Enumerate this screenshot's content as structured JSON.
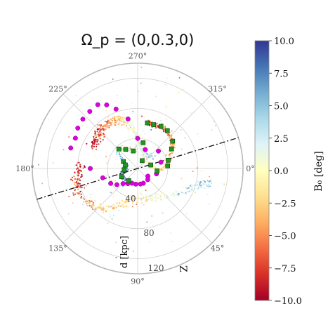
{
  "chart_data": {
    "type": "scatter",
    "projection": "polar",
    "title": "Ω_p = (0,0.3,0)",
    "angular_ticks": [
      "270°",
      "315°",
      "0°",
      "45°",
      "90°",
      "135°",
      "180°",
      "225°"
    ],
    "radial_ticks": [
      "40",
      "80",
      "120"
    ],
    "radial_label": "d [kpc]",
    "radial_extra_label": "Z",
    "rlim": [
      0,
      140
    ],
    "grid": true,
    "colorbar": {
      "label": "B₀ [deg]",
      "range": [
        -10.0,
        10.0
      ],
      "ticks": [
        "10.0",
        "7.5",
        "5.0",
        "2.5",
        "0.0",
        "−2.5",
        "−5.0",
        "−7.5",
        "−10.0"
      ],
      "colormap": "RdYlBu",
      "colors": [
        "#a50026",
        "#d73027",
        "#f46d43",
        "#fdae61",
        "#fee090",
        "#ffffbf",
        "#e0f3f8",
        "#abd9e9",
        "#74add1",
        "#4575b4",
        "#313695"
      ]
    },
    "magenta_track": [
      {
        "theta": 197,
        "r": 93
      },
      {
        "theta": 206,
        "r": 92
      },
      {
        "theta": 214,
        "r": 96
      },
      {
        "theta": 222,
        "r": 98
      },
      {
        "theta": 230,
        "r": 99
      },
      {
        "theta": 238,
        "r": 100
      },
      {
        "theta": 244,
        "r": 94
      },
      {
        "theta": 250,
        "r": 84
      },
      {
        "theta": 259,
        "r": 67
      },
      {
        "theta": 270,
        "r": 40
      },
      {
        "theta": 292,
        "r": 27
      },
      {
        "theta": 320,
        "r": 36
      },
      {
        "theta": 345,
        "r": 32
      },
      {
        "theta": 16,
        "r": 26
      },
      {
        "theta": 37,
        "r": 17
      },
      {
        "theta": 48,
        "r": 20
      },
      {
        "theta": 69,
        "r": 21
      },
      {
        "theta": 80,
        "r": 21
      },
      {
        "theta": 97,
        "r": 21
      },
      {
        "theta": 111,
        "r": 21
      },
      {
        "theta": 123,
        "r": 24
      },
      {
        "theta": 134,
        "r": 28
      },
      {
        "theta": 142,
        "r": 35
      },
      {
        "theta": 151,
        "r": 41
      },
      {
        "theta": 165,
        "r": 48
      },
      {
        "theta": 180,
        "r": 63
      }
    ],
    "green_track": [
      {
        "theta": 282,
        "r": 62
      },
      {
        "theta": 290,
        "r": 62
      },
      {
        "theta": 299,
        "r": 64
      },
      {
        "theta": 308,
        "r": 64
      },
      {
        "theta": 322,
        "r": 59
      },
      {
        "theta": 330,
        "r": 52
      },
      {
        "theta": 345,
        "r": 42
      },
      {
        "theta": 355,
        "r": 40
      },
      {
        "theta": 7,
        "r": 26
      },
      {
        "theta": 345,
        "r": 18
      },
      {
        "theta": 300,
        "r": 12
      },
      {
        "theta": 282,
        "r": 35
      },
      {
        "theta": 256,
        "r": 24
      },
      {
        "theta": 238,
        "r": 30
      },
      {
        "theta": 226,
        "r": 36
      },
      {
        "theta": 206,
        "r": 21
      },
      {
        "theta": 196,
        "r": 17
      },
      {
        "theta": 174,
        "r": 18
      },
      {
        "theta": 153,
        "r": 24
      },
      {
        "theta": 126,
        "r": 20
      }
    ],
    "reference_line": {
      "style": "dash-dot",
      "theta_deg": 163
    }
  }
}
